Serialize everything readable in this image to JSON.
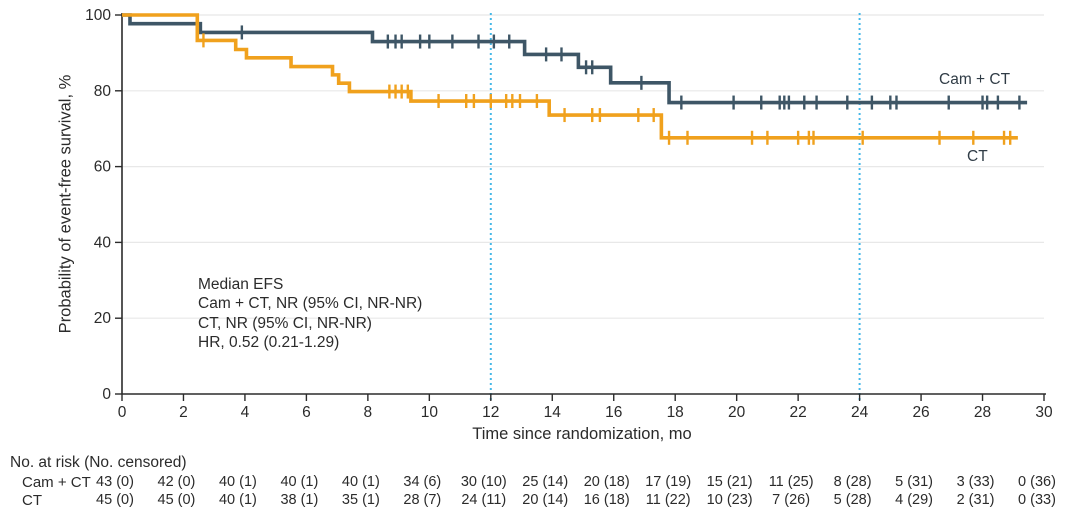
{
  "chart_data": {
    "type": "line",
    "subtype": "kaplan-meier-step",
    "title": "",
    "xlabel": "Time since randomization, mo",
    "ylabel": "Probability of event-free survival, %",
    "xlim": [
      0,
      30
    ],
    "ylim": [
      0,
      100
    ],
    "x_ticks": [
      0,
      2,
      4,
      6,
      8,
      10,
      12,
      14,
      16,
      18,
      20,
      22,
      24,
      26,
      28,
      30
    ],
    "y_ticks": [
      0,
      20,
      40,
      60,
      80,
      100
    ],
    "grid": "horizontal",
    "legend_position": "curve-end-labels",
    "reference_lines_x": [
      12,
      24
    ],
    "reference_line_color": "#45b8e8",
    "grid_color": "#e8e8e8",
    "axis_color": "#2b2b2b",
    "annotation": [
      "Median EFS",
      "Cam + CT, NR (95% CI, NR-NR)",
      "CT, NR (95% CI, NR-NR)",
      "HR, 0.52 (0.21-1.29)"
    ],
    "series": [
      {
        "name": "Cam + CT",
        "color": "#3e5666",
        "steps": [
          [
            0,
            100
          ],
          [
            0.26,
            97.7
          ],
          [
            2.55,
            95.4
          ],
          [
            8.15,
            93.0
          ],
          [
            13.1,
            89.6
          ],
          [
            14.85,
            86.2
          ],
          [
            15.9,
            82.1
          ],
          [
            17.8,
            76.9
          ],
          [
            29.45,
            76.9
          ]
        ],
        "censor_marks": [
          [
            3.9,
            95.4
          ],
          [
            8.65,
            93.0
          ],
          [
            8.9,
            93.0
          ],
          [
            9.1,
            93.0
          ],
          [
            9.7,
            93.0
          ],
          [
            10.0,
            93.0
          ],
          [
            10.75,
            93.0
          ],
          [
            11.6,
            93.0
          ],
          [
            12.1,
            93.0
          ],
          [
            12.6,
            93.0
          ],
          [
            13.8,
            89.6
          ],
          [
            14.3,
            89.6
          ],
          [
            15.1,
            86.2
          ],
          [
            15.3,
            86.2
          ],
          [
            16.9,
            82.1
          ],
          [
            18.2,
            76.9
          ],
          [
            19.9,
            76.9
          ],
          [
            20.8,
            76.9
          ],
          [
            21.4,
            76.9
          ],
          [
            21.55,
            76.9
          ],
          [
            21.7,
            76.9
          ],
          [
            22.2,
            76.9
          ],
          [
            22.6,
            76.9
          ],
          [
            23.6,
            76.9
          ],
          [
            24.4,
            76.9
          ],
          [
            25.0,
            76.9
          ],
          [
            25.2,
            76.9
          ],
          [
            26.9,
            76.9
          ],
          [
            28.0,
            76.9
          ],
          [
            28.15,
            76.9
          ],
          [
            28.5,
            76.9
          ],
          [
            29.2,
            76.9
          ]
        ]
      },
      {
        "name": "CT",
        "color": "#f0a11d",
        "steps": [
          [
            0,
            100
          ],
          [
            2.45,
            93.3
          ],
          [
            3.7,
            90.9
          ],
          [
            4.05,
            88.7
          ],
          [
            5.5,
            86.4
          ],
          [
            6.85,
            84.2
          ],
          [
            7.05,
            82.0
          ],
          [
            7.4,
            79.8
          ],
          [
            9.4,
            77.3
          ],
          [
            13.9,
            73.6
          ],
          [
            17.55,
            67.6
          ],
          [
            29.15,
            67.6
          ]
        ],
        "censor_marks": [
          [
            2.65,
            93.3
          ],
          [
            8.7,
            79.8
          ],
          [
            8.9,
            79.8
          ],
          [
            9.1,
            79.8
          ],
          [
            9.3,
            79.8
          ],
          [
            10.3,
            77.3
          ],
          [
            11.2,
            77.3
          ],
          [
            11.45,
            77.3
          ],
          [
            12.0,
            77.3
          ],
          [
            12.5,
            77.3
          ],
          [
            12.7,
            77.3
          ],
          [
            12.95,
            77.3
          ],
          [
            13.5,
            77.3
          ],
          [
            14.4,
            73.6
          ],
          [
            15.3,
            73.6
          ],
          [
            15.55,
            73.6
          ],
          [
            16.8,
            73.6
          ],
          [
            17.3,
            73.6
          ],
          [
            17.8,
            67.6
          ],
          [
            18.4,
            67.6
          ],
          [
            20.5,
            67.6
          ],
          [
            21.0,
            67.6
          ],
          [
            22.0,
            67.6
          ],
          [
            22.35,
            67.6
          ],
          [
            22.5,
            67.6
          ],
          [
            24.1,
            67.6
          ],
          [
            26.6,
            67.6
          ],
          [
            27.7,
            67.6
          ],
          [
            28.7,
            67.6
          ],
          [
            28.9,
            67.6
          ]
        ]
      }
    ]
  },
  "risk_table": {
    "title": "No. at risk (No. censored)",
    "time_points": [
      0,
      2,
      4,
      6,
      8,
      10,
      12,
      14,
      16,
      18,
      20,
      22,
      24,
      26,
      28,
      30
    ],
    "rows": [
      {
        "label": "Cam + CT",
        "values": [
          "43 (0)",
          "42 (0)",
          "40 (1)",
          "40 (1)",
          "40 (1)",
          "34 (6)",
          "30 (10)",
          "25 (14)",
          "20 (18)",
          "17 (19)",
          "15 (21)",
          "11 (25)",
          "8 (28)",
          "5 (31)",
          "3 (33)",
          "0 (36)"
        ]
      },
      {
        "label": "CT",
        "values": [
          "45 (0)",
          "45 (0)",
          "40 (1)",
          "38 (1)",
          "35 (1)",
          "28 (7)",
          "24 (11)",
          "20 (14)",
          "16 (18)",
          "11 (22)",
          "10 (23)",
          "7 (26)",
          "5 (28)",
          "4 (29)",
          "2 (31)",
          "0 (33)"
        ]
      }
    ]
  }
}
